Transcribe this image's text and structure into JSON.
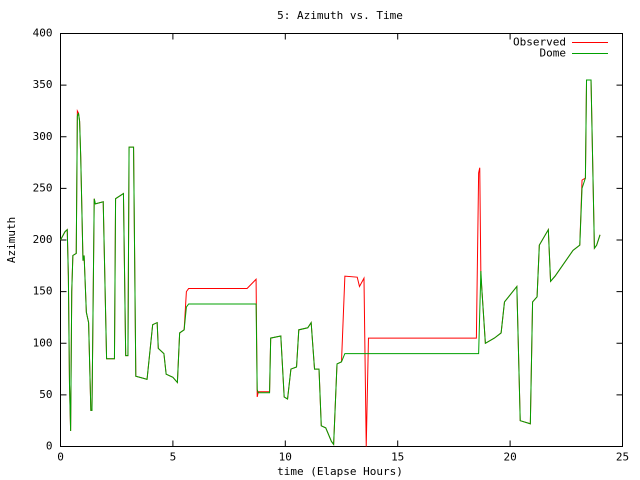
{
  "chart_data": {
    "type": "line",
    "title": "5: Azimuth vs. Time",
    "x_label": "time (Elapse Hours)",
    "y_label": "Azimuth",
    "xlim": [
      0,
      25
    ],
    "xticks": [
      0,
      5,
      10,
      15,
      20,
      25
    ],
    "ylim": [
      0,
      400
    ],
    "yticks": [
      0,
      50,
      100,
      150,
      200,
      250,
      300,
      350,
      400
    ],
    "legend": "top-right",
    "series": [
      {
        "name": "Observed",
        "color": "#ff0000",
        "x": [
          0,
          0.2,
          0.3,
          0.35,
          0.4,
          0.45,
          0.5,
          0.55,
          0.7,
          0.75,
          0.8,
          0.85,
          0.9,
          1.0,
          1.05,
          1.15,
          1.25,
          1.35,
          1.4,
          1.5,
          1.55,
          1.9,
          2.05,
          2.4,
          2.45,
          2.8,
          2.9,
          3.0,
          3.05,
          3.25,
          3.35,
          3.7,
          3.85,
          4.1,
          4.3,
          4.35,
          4.6,
          4.7,
          5.0,
          5.2,
          5.3,
          5.5,
          5.6,
          5.7,
          8.3,
          8.7,
          8.75,
          8.8,
          9.3,
          9.35,
          9.8,
          9.95,
          10.1,
          10.25,
          10.5,
          10.6,
          11.0,
          11.15,
          11.3,
          11.5,
          11.6,
          11.8,
          12.05,
          12.15,
          12.3,
          12.5,
          12.65,
          13.2,
          13.3,
          13.5,
          13.6,
          13.7,
          18.5,
          18.6,
          18.65,
          18.7,
          18.75,
          18.9,
          19.3,
          19.6,
          19.75,
          20.3,
          20.45,
          20.9,
          21.0,
          21.2,
          21.3,
          21.7,
          21.8,
          22.0,
          22.8,
          23.1,
          23.2,
          23.35,
          23.4,
          23.6,
          23.75,
          23.85,
          24.0
        ],
        "values": [
          200,
          208,
          210,
          165,
          60,
          15,
          150,
          185,
          187,
          325,
          323,
          315,
          280,
          180,
          185,
          130,
          120,
          35,
          35,
          240,
          235,
          237,
          85,
          85,
          240,
          245,
          88,
          88,
          290,
          290,
          68,
          66,
          65,
          118,
          120,
          95,
          90,
          70,
          67,
          62,
          110,
          113,
          150,
          153,
          153,
          162,
          48,
          53,
          53,
          105,
          107,
          48,
          46,
          75,
          77,
          113,
          115,
          120,
          75,
          75,
          20,
          18,
          5,
          2,
          80,
          82,
          165,
          164,
          155,
          163,
          0,
          105,
          105,
          265,
          270,
          165,
          150,
          100,
          105,
          110,
          140,
          155,
          25,
          22,
          140,
          145,
          195,
          210,
          160,
          165,
          190,
          195,
          258,
          260,
          355,
          355,
          192,
          195,
          205
        ]
      },
      {
        "name": "Dome",
        "color": "#00a000",
        "x": [
          0,
          0.2,
          0.3,
          0.35,
          0.4,
          0.45,
          0.5,
          0.55,
          0.7,
          0.75,
          0.8,
          0.85,
          0.9,
          1.0,
          1.05,
          1.15,
          1.25,
          1.35,
          1.4,
          1.5,
          1.55,
          1.9,
          2.05,
          2.4,
          2.45,
          2.8,
          2.9,
          3.0,
          3.05,
          3.25,
          3.35,
          3.7,
          3.85,
          4.1,
          4.3,
          4.35,
          4.6,
          4.7,
          5.0,
          5.2,
          5.3,
          5.5,
          5.6,
          5.7,
          8.7,
          8.75,
          8.8,
          9.3,
          9.35,
          9.8,
          9.95,
          10.1,
          10.25,
          10.5,
          10.6,
          11.0,
          11.15,
          11.3,
          11.5,
          11.6,
          11.8,
          12.05,
          12.15,
          12.3,
          12.5,
          12.65,
          18.6,
          18.7,
          18.75,
          18.9,
          19.3,
          19.6,
          19.75,
          20.3,
          20.45,
          20.9,
          21.0,
          21.2,
          21.3,
          21.7,
          21.8,
          22.0,
          22.8,
          23.1,
          23.2,
          23.35,
          23.4,
          23.6,
          23.75,
          23.85,
          24.0
        ],
        "values": [
          200,
          208,
          210,
          165,
          60,
          15,
          150,
          185,
          187,
          320,
          323,
          315,
          280,
          180,
          185,
          130,
          120,
          35,
          35,
          240,
          235,
          237,
          85,
          85,
          240,
          245,
          88,
          88,
          290,
          290,
          68,
          66,
          65,
          118,
          120,
          95,
          90,
          70,
          67,
          62,
          110,
          113,
          135,
          138,
          138,
          55,
          52,
          52,
          105,
          107,
          48,
          46,
          75,
          77,
          113,
          115,
          120,
          75,
          75,
          20,
          18,
          5,
          2,
          80,
          82,
          90,
          90,
          170,
          150,
          100,
          105,
          110,
          140,
          155,
          25,
          22,
          140,
          145,
          195,
          210,
          160,
          165,
          190,
          195,
          250,
          260,
          355,
          355,
          192,
          195,
          205
        ]
      }
    ]
  }
}
